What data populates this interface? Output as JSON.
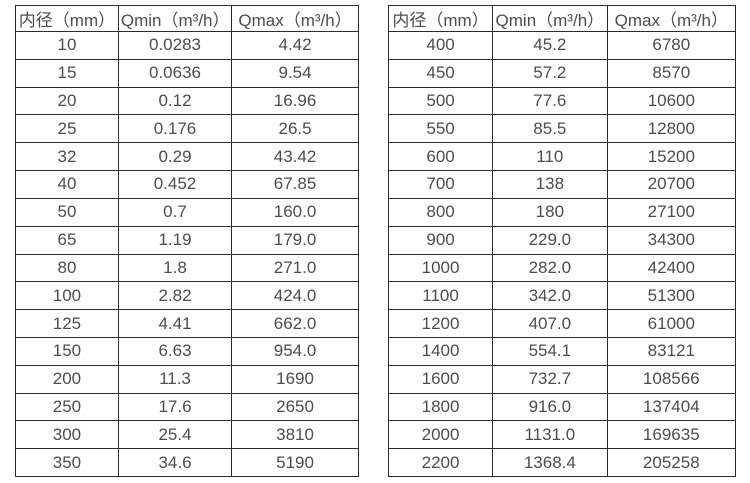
{
  "colors": {
    "background": "#ffffff",
    "text": "#4d4d4d",
    "border": "#2b2b2b"
  },
  "chart_data": [
    {
      "type": "table",
      "title": "",
      "headers": [
        "内径（mm）",
        "Qmin（m³/h）",
        "Qmax（m³/h）"
      ],
      "rows": [
        [
          "10",
          "0.0283",
          "4.42"
        ],
        [
          "15",
          "0.0636",
          "9.54"
        ],
        [
          "20",
          "0.12",
          "16.96"
        ],
        [
          "25",
          "0.176",
          "26.5"
        ],
        [
          "32",
          "0.29",
          "43.42"
        ],
        [
          "40",
          "0.452",
          "67.85"
        ],
        [
          "50",
          "0.7",
          "160.0"
        ],
        [
          "65",
          "1.19",
          "179.0"
        ],
        [
          "80",
          "1.8",
          "271.0"
        ],
        [
          "100",
          "2.82",
          "424.0"
        ],
        [
          "125",
          "4.41",
          "662.0"
        ],
        [
          "150",
          "6.63",
          "954.0"
        ],
        [
          "200",
          "11.3",
          "1690"
        ],
        [
          "250",
          "17.6",
          "2650"
        ],
        [
          "300",
          "25.4",
          "3810"
        ],
        [
          "350",
          "34.6",
          "5190"
        ]
      ]
    },
    {
      "type": "table",
      "title": "",
      "headers": [
        "内径（mm）",
        "Qmin（m³/h）",
        "Qmax（m³/h）"
      ],
      "rows": [
        [
          "400",
          "45.2",
          "6780"
        ],
        [
          "450",
          "57.2",
          "8570"
        ],
        [
          "500",
          "77.6",
          "10600"
        ],
        [
          "550",
          "85.5",
          "12800"
        ],
        [
          "600",
          "110",
          "15200"
        ],
        [
          "700",
          "138",
          "20700"
        ],
        [
          "800",
          "180",
          "27100"
        ],
        [
          "900",
          "229.0",
          "34300"
        ],
        [
          "1000",
          "282.0",
          "42400"
        ],
        [
          "1100",
          "342.0",
          "51300"
        ],
        [
          "1200",
          "407.0",
          "61000"
        ],
        [
          "1400",
          "554.1",
          "83121"
        ],
        [
          "1600",
          "732.7",
          "108566"
        ],
        [
          "1800",
          "916.0",
          "137404"
        ],
        [
          "2000",
          "1131.0",
          "169635"
        ],
        [
          "2200",
          "1368.4",
          "205258"
        ]
      ]
    }
  ]
}
